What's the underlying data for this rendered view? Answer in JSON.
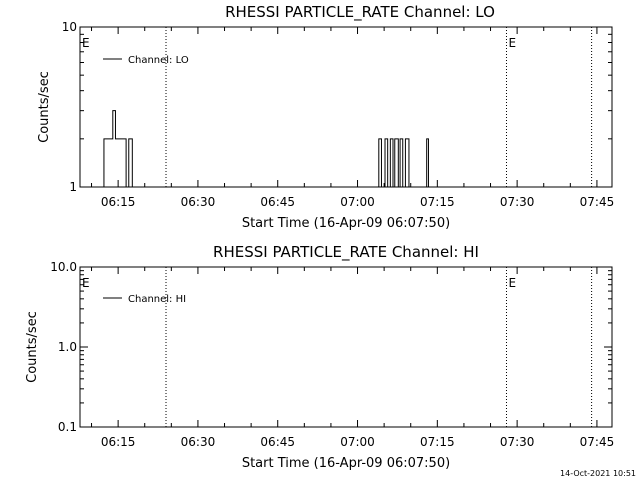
{
  "footer": {
    "timestamp": "14-Oct-2021 10:51"
  },
  "chart_data": [
    {
      "type": "line",
      "title": "RHESSI PARTICLE_RATE Channel: LO",
      "xlabel": "Start Time (16-Apr-09 06:07:50)",
      "ylabel": "Counts/sec",
      "yscale": "log",
      "ylim": [
        1,
        10
      ],
      "y_ticks": [
        1,
        10
      ],
      "y_tick_labels": [
        "1",
        "10"
      ],
      "xlim": [
        "06:07:50",
        "07:47:50"
      ],
      "x_ticks": [
        "06:15",
        "06:30",
        "06:45",
        "07:00",
        "07:15",
        "07:30",
        "07:45"
      ],
      "legend": {
        "placement": "top-left",
        "entries": [
          "Channel: LO"
        ]
      },
      "vlines": [
        "06:24:00",
        "07:28:00",
        "07:44:00"
      ],
      "markers": [
        {
          "text": "E",
          "t": "06:07:50"
        },
        {
          "text": "E",
          "t": "07:28:00"
        }
      ],
      "series": [
        {
          "name": "Channel: LO",
          "points": [
            [
              "06:11:40",
              1
            ],
            [
              "06:12:20",
              2
            ],
            [
              "06:13:30",
              2
            ],
            [
              "06:14:00",
              3
            ],
            [
              "06:14:30",
              2
            ],
            [
              "06:15:30",
              2
            ],
            [
              "06:16:30",
              1
            ],
            [
              "06:17:00",
              2
            ],
            [
              "06:17:40",
              1
            ],
            [
              "07:03:40",
              1
            ],
            [
              "07:04:00",
              2
            ],
            [
              "07:04:30",
              1
            ],
            [
              "07:05:10",
              2
            ],
            [
              "07:05:40",
              1
            ],
            [
              "07:06:10",
              2
            ],
            [
              "07:06:40",
              1
            ],
            [
              "07:07:00",
              2
            ],
            [
              "07:07:40",
              1
            ],
            [
              "07:08:00",
              2
            ],
            [
              "07:08:30",
              1
            ],
            [
              "07:09:00",
              2
            ],
            [
              "07:09:40",
              1
            ],
            [
              "07:12:40",
              1
            ],
            [
              "07:13:00",
              2
            ],
            [
              "07:13:20",
              1
            ]
          ]
        }
      ]
    },
    {
      "type": "line",
      "title": "RHESSI PARTICLE_RATE Channel: HI",
      "xlabel": "Start Time (16-Apr-09 06:07:50)",
      "ylabel": "Counts/sec",
      "yscale": "log",
      "ylim": [
        0.1,
        10
      ],
      "y_ticks": [
        0.1,
        1,
        10
      ],
      "y_tick_labels": [
        "0.1",
        "1.0",
        "10.0"
      ],
      "xlim": [
        "06:07:50",
        "07:47:50"
      ],
      "x_ticks": [
        "06:15",
        "06:30",
        "06:45",
        "07:00",
        "07:15",
        "07:30",
        "07:45"
      ],
      "legend": {
        "placement": "top-left",
        "entries": [
          "Channel: HI"
        ]
      },
      "vlines": [
        "06:24:00",
        "07:28:00",
        "07:44:00"
      ],
      "markers": [
        {
          "text": "E",
          "t": "06:07:50"
        },
        {
          "text": "E",
          "t": "07:28:00"
        }
      ],
      "series": [
        {
          "name": "Channel: HI",
          "points": []
        }
      ]
    }
  ]
}
